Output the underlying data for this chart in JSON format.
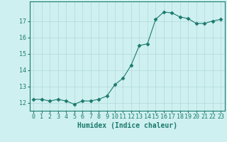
{
  "x": [
    0,
    1,
    2,
    3,
    4,
    5,
    6,
    7,
    8,
    9,
    10,
    11,
    12,
    13,
    14,
    15,
    16,
    17,
    18,
    19,
    20,
    21,
    22,
    23
  ],
  "y": [
    12.2,
    12.2,
    12.1,
    12.2,
    12.1,
    11.9,
    12.1,
    12.1,
    12.2,
    12.4,
    13.1,
    13.5,
    14.3,
    15.5,
    15.6,
    17.1,
    17.55,
    17.5,
    17.25,
    17.15,
    16.85,
    16.85,
    17.0,
    17.1
  ],
  "line_color": "#1a7a6e",
  "marker": "D",
  "marker_size": 2.5,
  "bg_color": "#cff0f0",
  "grid_color": "#b0d8d8",
  "xlabel": "Humidex (Indice chaleur)",
  "xlabel_color": "#1a7a6e",
  "xlabel_fontsize": 7,
  "tick_color": "#1a7a6e",
  "tick_fontsize": 6,
  "ylim": [
    11.5,
    18.2
  ],
  "yticks": [
    12,
    13,
    14,
    15,
    16,
    17
  ],
  "xlim": [
    -0.5,
    23.5
  ],
  "xticks": [
    0,
    1,
    2,
    3,
    4,
    5,
    6,
    7,
    8,
    9,
    10,
    11,
    12,
    13,
    14,
    15,
    16,
    17,
    18,
    19,
    20,
    21,
    22,
    23
  ]
}
